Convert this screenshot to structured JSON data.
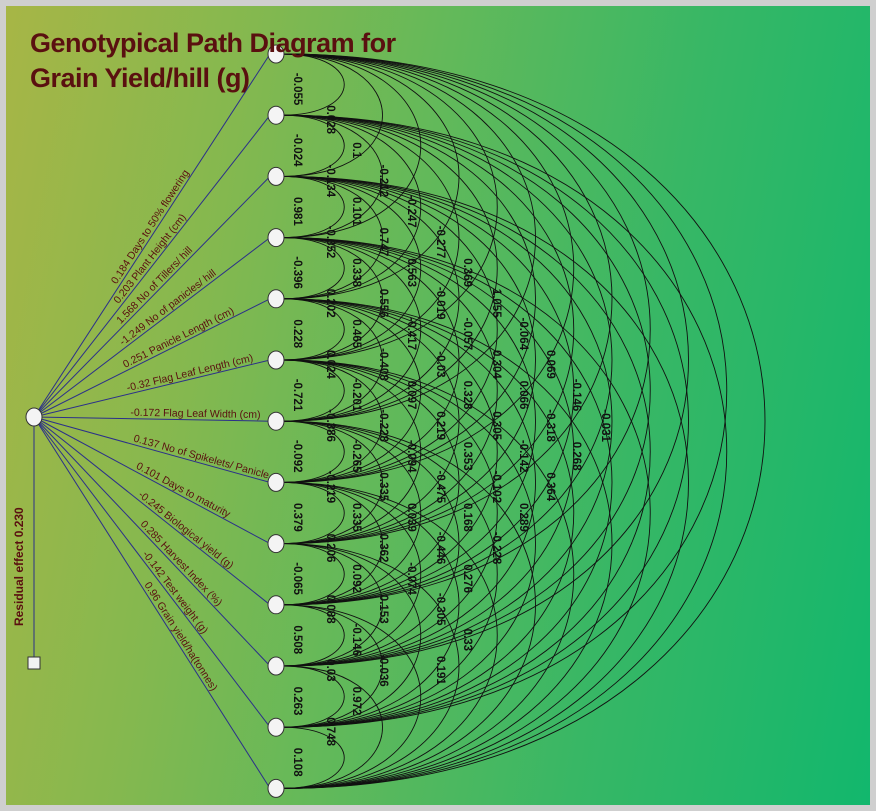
{
  "title_line1": "Genotypical Path Diagram for",
  "title_line2": "Grain Yield/hill (g)",
  "residual_label": "Residual effect 0.230",
  "paths": [
    {
      "coef": "0.184",
      "name": "Days to 50% flowering"
    },
    {
      "coef": "0.203",
      "name": "Plant Height (cm)"
    },
    {
      "coef": "1.568",
      "name": "No of  Tillers/ hill"
    },
    {
      "coef": "-1.249",
      "name": "No of panicles/ hill"
    },
    {
      "coef": "0.251",
      "name": "Panicle Length (cm)"
    },
    {
      "coef": "-0.32",
      "name": "Flag Leaf Length (cm)"
    },
    {
      "coef": "-0.172",
      "name": "Flag Leaf Width (cm)"
    },
    {
      "coef": "0.137",
      "name": "No of Spikelets/ Panicle"
    },
    {
      "coef": "0.101",
      "name": "Days to maturity"
    },
    {
      "coef": "-0.245",
      "name": "Biological yield        (g)"
    },
    {
      "coef": "0.285",
      "name": "Harvest Index (%)"
    },
    {
      "coef": "-0.142",
      "name": "Test weight (g)"
    },
    {
      "coef": "0.96",
      "name": "Grain yield/ha(tonnes)"
    }
  ],
  "correlation_columns": [
    [
      "-0.055",
      "-0.024",
      "0.981",
      "-0.396",
      "0.228",
      "-0.721",
      "-0.092",
      "0.379",
      "-0.065",
      "0.508",
      "0.263",
      "0.108"
    ],
    [
      "0.028",
      "-0.134",
      "-0.352",
      "0.202",
      "0.024",
      "-0.386",
      "-0.219",
      "0.206",
      "0.088",
      "0.03",
      "0.748"
    ],
    [
      "0.1",
      "0.101",
      "0.338",
      "0.465",
      "-0.201",
      "-0.265",
      "0.335",
      "0.092",
      "-0.146",
      "0.972"
    ],
    [
      "-0.212",
      "0.747",
      "0.556",
      "-0.408",
      "-0.228",
      "0.335",
      "0.362",
      "0.153",
      "-0.036"
    ],
    [
      "-0.247",
      "0.563",
      "-0.417",
      "0.097",
      "-0.094",
      "0.039",
      "-0.074"
    ],
    [
      "-0.277",
      "-0.019",
      "-0.03",
      "0.219",
      "-0.475",
      "-0.446",
      "-0.305",
      "0.191"
    ],
    [
      "0.369",
      "-0.057",
      "0.328",
      "0.353",
      "0.168",
      "0.276",
      "0.33"
    ],
    [
      "1.055",
      "0.304",
      "0.305",
      "-0.102",
      "-0.228"
    ],
    [
      "-0.064",
      "0.066",
      "-0.142",
      "0.289"
    ],
    [
      "0.069",
      "-0.318",
      "0.364"
    ],
    [
      "-0.146",
      "0.268"
    ],
    [
      "-0.031"
    ]
  ]
}
